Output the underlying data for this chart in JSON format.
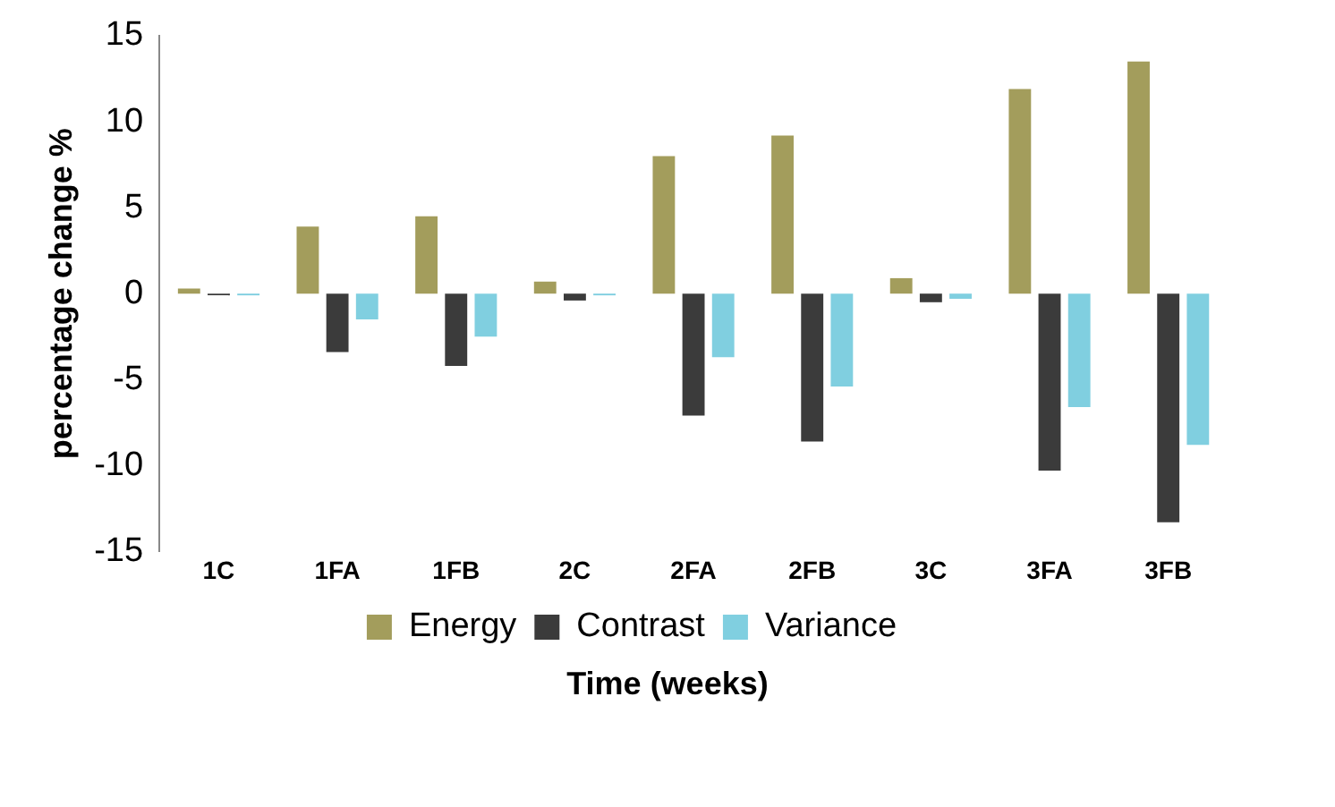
{
  "chart_data": {
    "type": "bar",
    "xlabel": "Time (weeks)",
    "ylabel": "percentage change %",
    "categories": [
      "1C",
      "1FA",
      "1FB",
      "2C",
      "2FA",
      "2FB",
      "3C",
      "3FA",
      "3FB"
    ],
    "series": [
      {
        "name": "Energy",
        "color": "#a39d5c",
        "values": [
          0.3,
          3.9,
          4.5,
          0.7,
          8.0,
          9.2,
          0.9,
          11.9,
          13.5
        ]
      },
      {
        "name": "Contrast",
        "color": "#3b3b3b",
        "values": [
          -0.1,
          -3.4,
          -4.2,
          -0.4,
          -7.1,
          -8.6,
          -0.5,
          -10.3,
          -13.3
        ]
      },
      {
        "name": "Variance",
        "color": "#80cfe0",
        "values": [
          -0.1,
          -1.5,
          -2.5,
          -0.1,
          -3.7,
          -5.4,
          -0.3,
          -6.6,
          -8.8
        ]
      }
    ],
    "ylim": [
      -15,
      15
    ],
    "yticks": [
      -15,
      -10,
      -5,
      0,
      5,
      10,
      15
    ],
    "grid": false,
    "legend": "bottom"
  }
}
